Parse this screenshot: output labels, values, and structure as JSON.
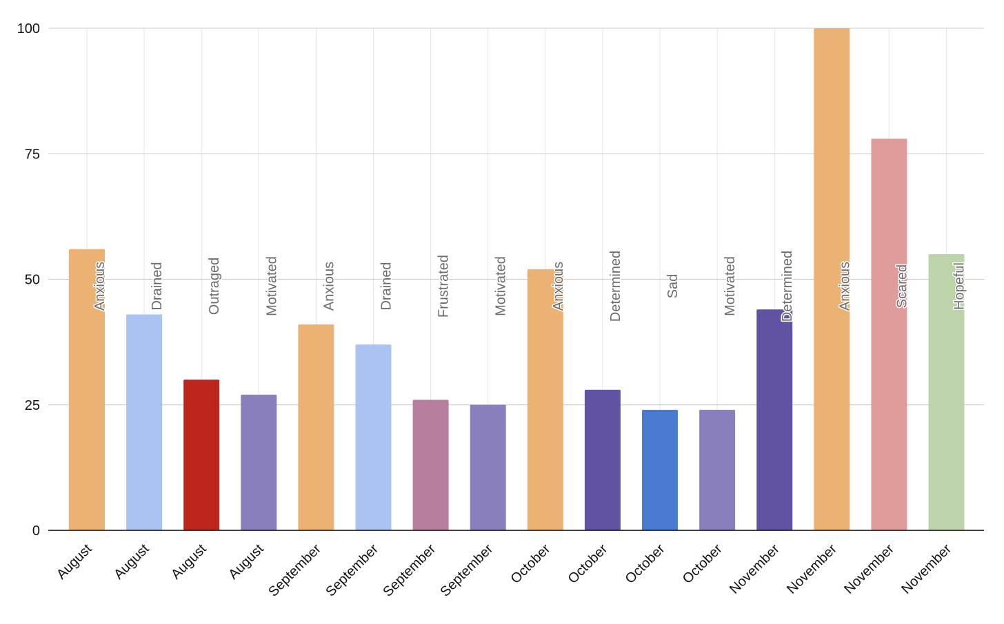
{
  "chart_data": {
    "type": "bar",
    "title": "",
    "xlabel": "",
    "ylabel": "",
    "ylim": [
      0,
      100
    ],
    "yticks": [
      0,
      25,
      50,
      75,
      100
    ],
    "grid": true,
    "legend": "none",
    "categories": [
      "August",
      "August",
      "August",
      "August",
      "September",
      "September",
      "September",
      "September",
      "October",
      "October",
      "October",
      "October",
      "November",
      "November",
      "November",
      "November"
    ],
    "data_labels": [
      "Anxious",
      "Drained",
      "Outraged",
      "Motivated",
      "Anxious",
      "Drained",
      "Frustrated",
      "Motivated",
      "Anxious",
      "Determined",
      "Sad",
      "Motivated",
      "Determined",
      "Anxious",
      "Scared",
      "Hopeful"
    ],
    "values": [
      56,
      43,
      30,
      27,
      41,
      37,
      26,
      25,
      52,
      28,
      24,
      24,
      44,
      100,
      78,
      55
    ],
    "colors": [
      "#ebb273",
      "#abc3f0",
      "#bc261c",
      "#897fbd",
      "#ebb273",
      "#abc3f0",
      "#b87e9d",
      "#897fbd",
      "#ebb273",
      "#6153a1",
      "#4a7bd3",
      "#897fbd",
      "#6153a1",
      "#ebb273",
      "#e09c9b",
      "#bdd4ab"
    ],
    "label_color": "#6b6b6b",
    "gridline_color": "#c8c8c8",
    "axis_color": "#000000"
  }
}
